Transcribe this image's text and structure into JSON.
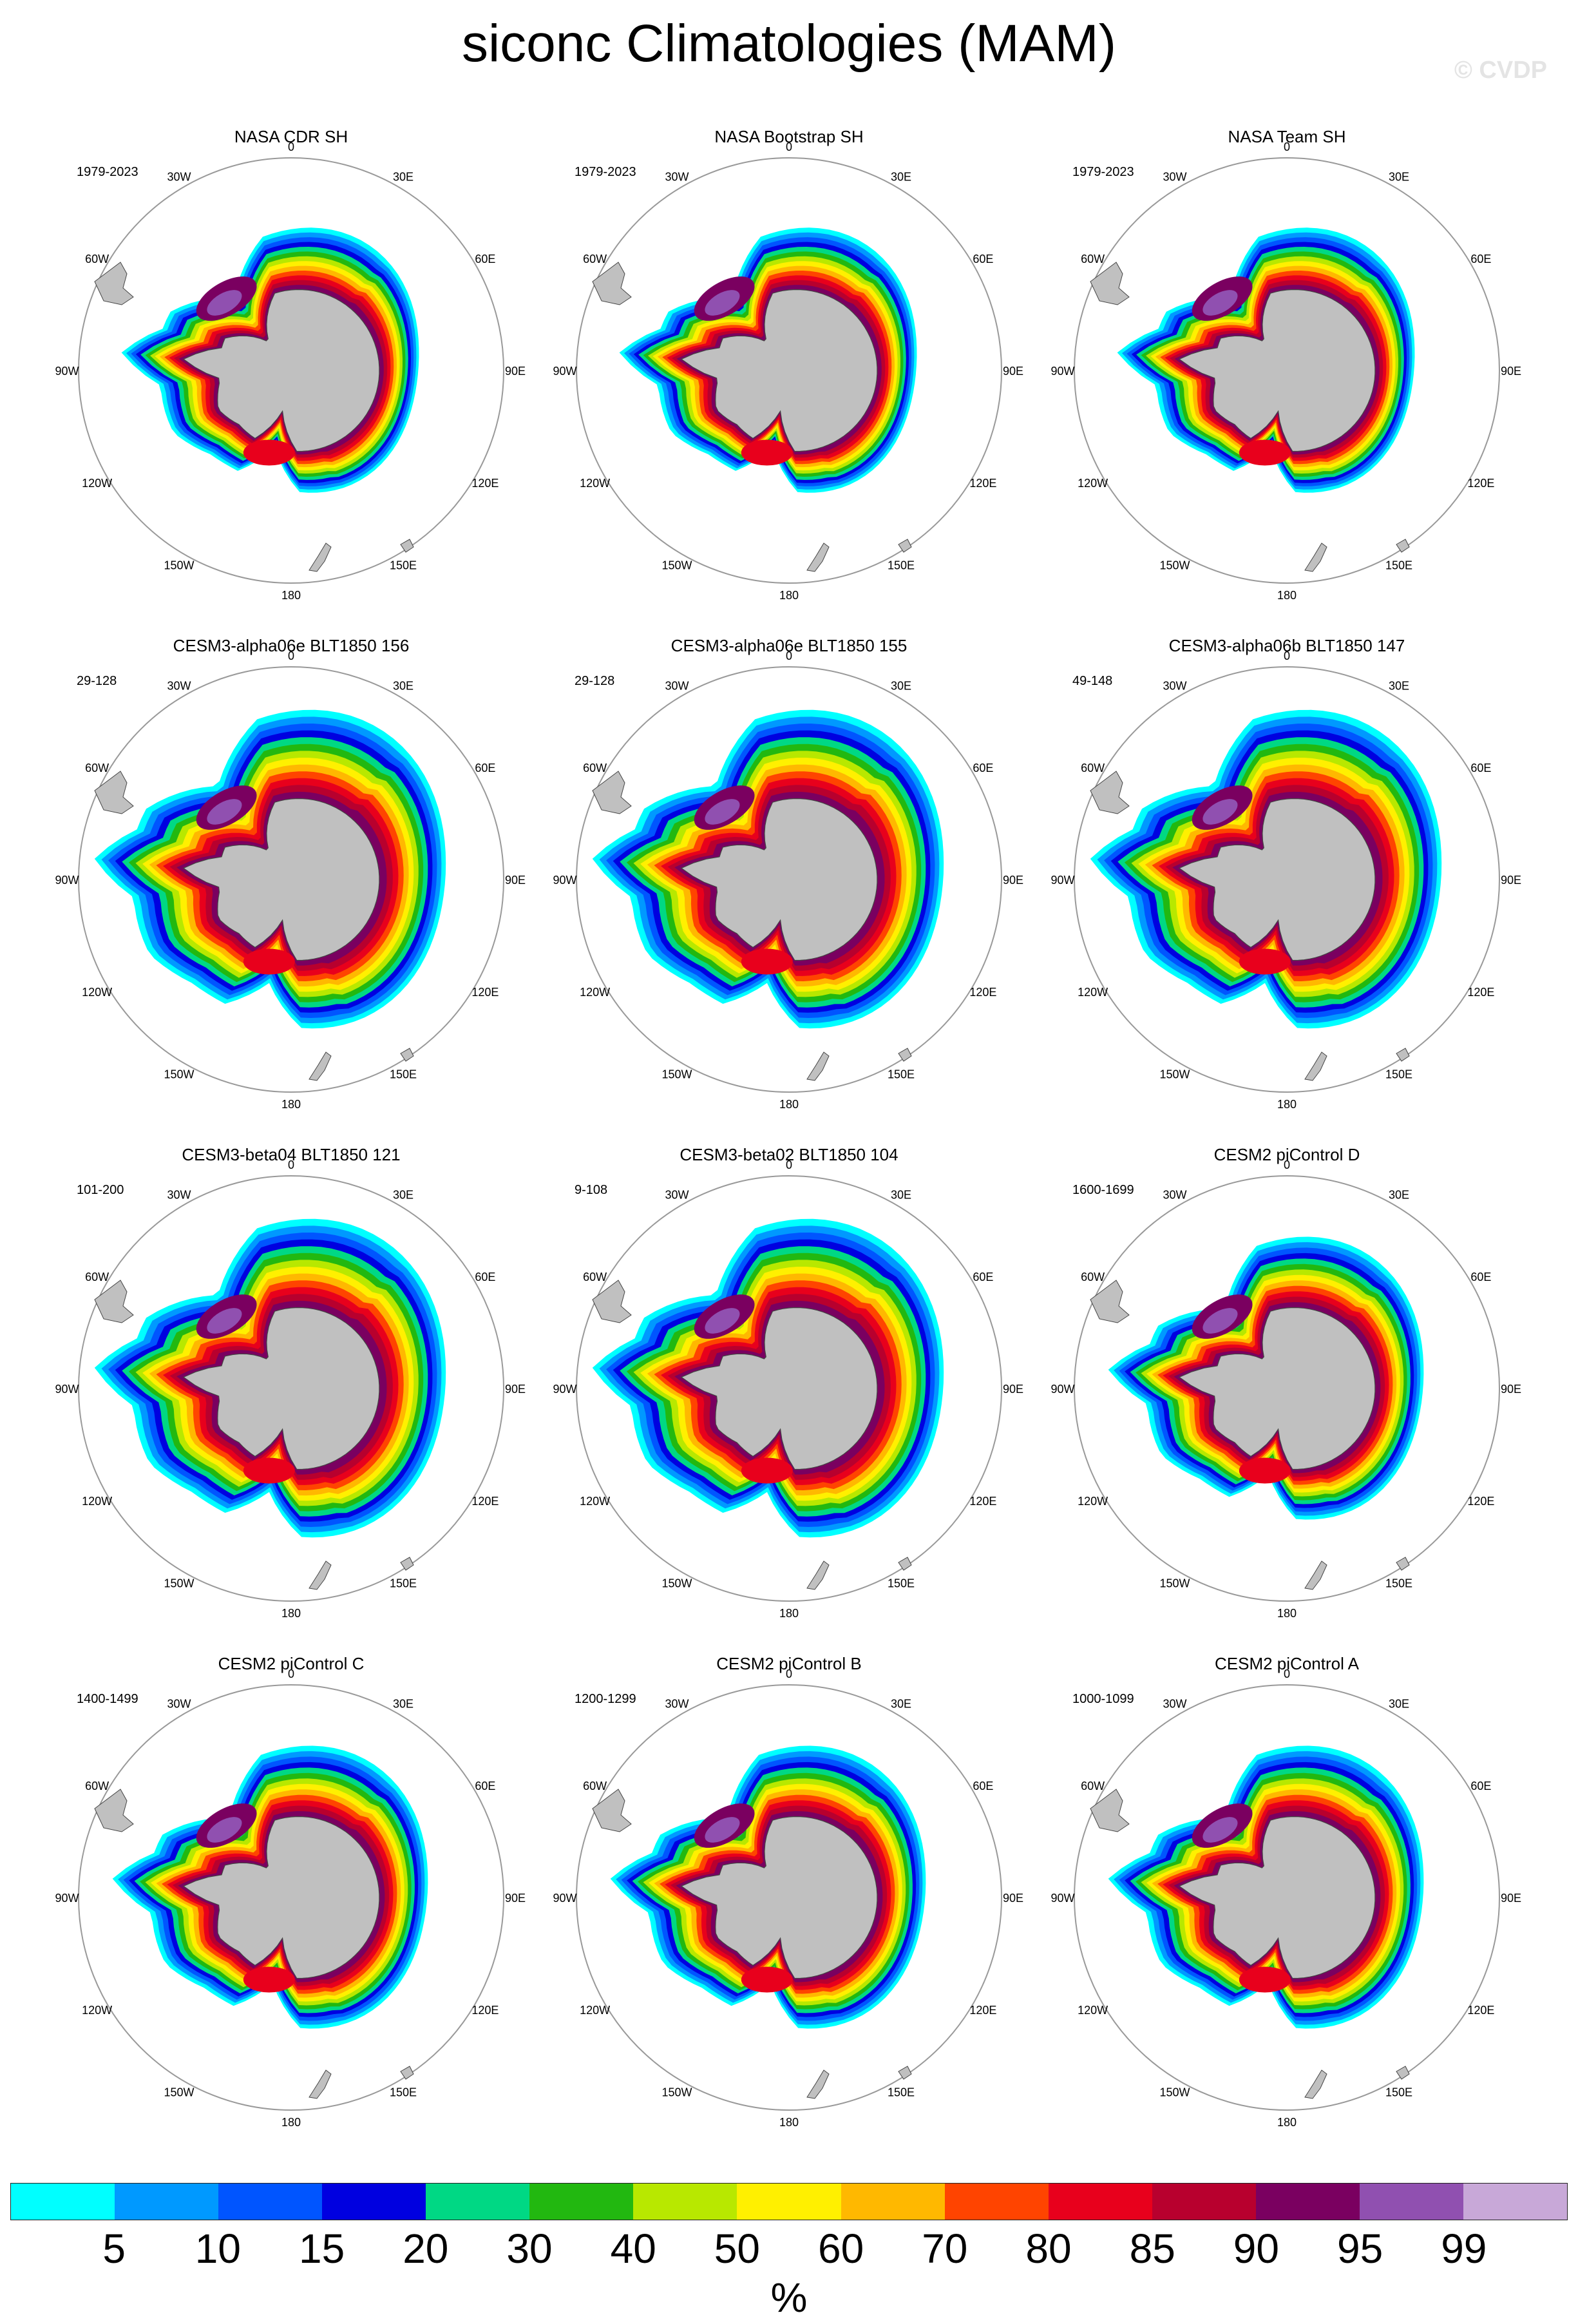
{
  "figure": {
    "title": "siconc Climatologies (MAM)",
    "watermark": "© CVDP",
    "units": "%"
  },
  "panels": [
    {
      "title": "NASA CDR SH",
      "years": "1979-2023",
      "variant": "obs"
    },
    {
      "title": "NASA Bootstrap SH",
      "years": "1979-2023",
      "variant": "obs"
    },
    {
      "title": "NASA Team SH",
      "years": "1979-2023",
      "variant": "obs"
    },
    {
      "title": "CESM3-alpha06e BLT1850 156",
      "years": "29-128",
      "variant": "cesm3"
    },
    {
      "title": "CESM3-alpha06e BLT1850 155",
      "years": "29-128",
      "variant": "cesm3"
    },
    {
      "title": "CESM3-alpha06b BLT1850 147",
      "years": "49-148",
      "variant": "cesm3"
    },
    {
      "title": "CESM3-beta04 BLT1850 121",
      "years": "101-200",
      "variant": "cesm3"
    },
    {
      "title": "CESM3-beta02 BLT1850 104",
      "years": "9-108",
      "variant": "cesm3"
    },
    {
      "title": "CESM2 piControl D",
      "years": "1600-1699",
      "variant": "cesm2"
    },
    {
      "title": "CESM2 piControl C",
      "years": "1400-1499",
      "variant": "cesm2"
    },
    {
      "title": "CESM2 piControl B",
      "years": "1200-1299",
      "variant": "cesm2"
    },
    {
      "title": "CESM2 piControl A",
      "years": "1000-1099",
      "variant": "cesm2"
    }
  ],
  "longitude_labels": [
    "0",
    "30E",
    "60E",
    "90E",
    "120E",
    "150E",
    "180",
    "150W",
    "120W",
    "90W",
    "60W",
    "30W"
  ],
  "colorbar": {
    "colors": [
      "#00ffff",
      "#0099ff",
      "#0055ff",
      "#0000e0",
      "#00d884",
      "#22b810",
      "#b8e800",
      "#fff000",
      "#ffb800",
      "#ff4400",
      "#e8001c",
      "#b8002e",
      "#7a0060",
      "#9050b0",
      "#c8a8d8"
    ],
    "labels": [
      "5",
      "10",
      "15",
      "20",
      "30",
      "40",
      "50",
      "60",
      "70",
      "80",
      "85",
      "90",
      "95",
      "99"
    ]
  },
  "colors": {
    "land": "#c0c0c0",
    "land_edge": "#444444",
    "circle": "#999999"
  }
}
